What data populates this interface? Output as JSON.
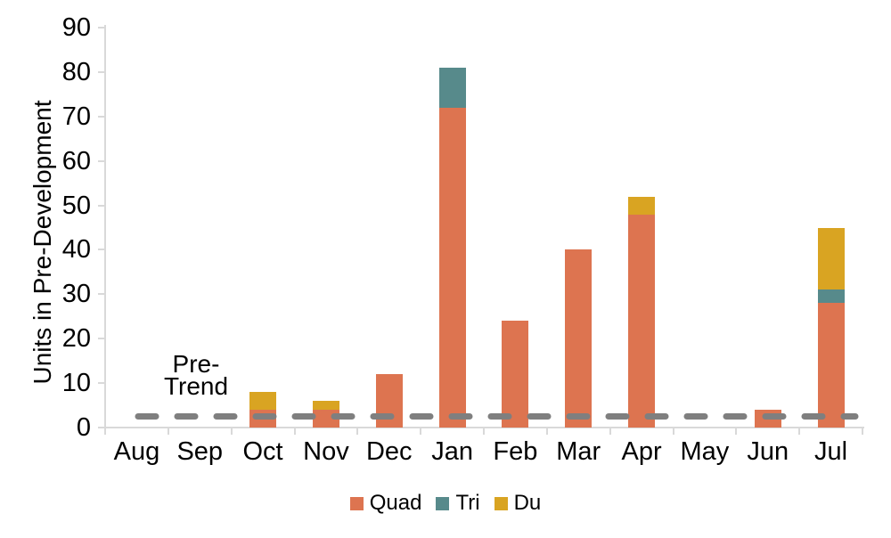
{
  "chart_data": {
    "type": "bar",
    "stacked": true,
    "title": "",
    "xlabel": "",
    "ylabel": "Units in Pre-Development",
    "ylim": [
      0,
      90
    ],
    "ytick_step": 10,
    "grid": false,
    "legend_position": "bottom",
    "categories": [
      "Aug",
      "Sep",
      "Oct",
      "Nov",
      "Dec",
      "Jan",
      "Feb",
      "Mar",
      "Apr",
      "May",
      "Jun",
      "Jul"
    ],
    "series": [
      {
        "name": "Quad",
        "color": "#DD7450",
        "values": [
          0,
          0,
          4,
          4,
          12,
          72,
          24,
          40,
          48,
          0,
          4,
          28
        ]
      },
      {
        "name": "Tri",
        "color": "#578A8B",
        "values": [
          0,
          0,
          0,
          0,
          0,
          9,
          0,
          0,
          0,
          0,
          0,
          3
        ]
      },
      {
        "name": "Du",
        "color": "#D9A422",
        "values": [
          0,
          0,
          4,
          2,
          0,
          0,
          0,
          0,
          4,
          0,
          0,
          14
        ]
      }
    ],
    "stack_totals": [
      0,
      0,
      8,
      6,
      12,
      81,
      24,
      40,
      52,
      0,
      4,
      45
    ],
    "reference_line": {
      "label": "Pre-Trend",
      "value": 2.5,
      "color": "#7F7F7F",
      "style": "dashed"
    }
  },
  "annotation": {
    "line1": "Pre-",
    "line2": "Trend"
  },
  "colors": {
    "axis": "#D9D9D9",
    "text": "#000000",
    "background": "#FFFFFF"
  }
}
